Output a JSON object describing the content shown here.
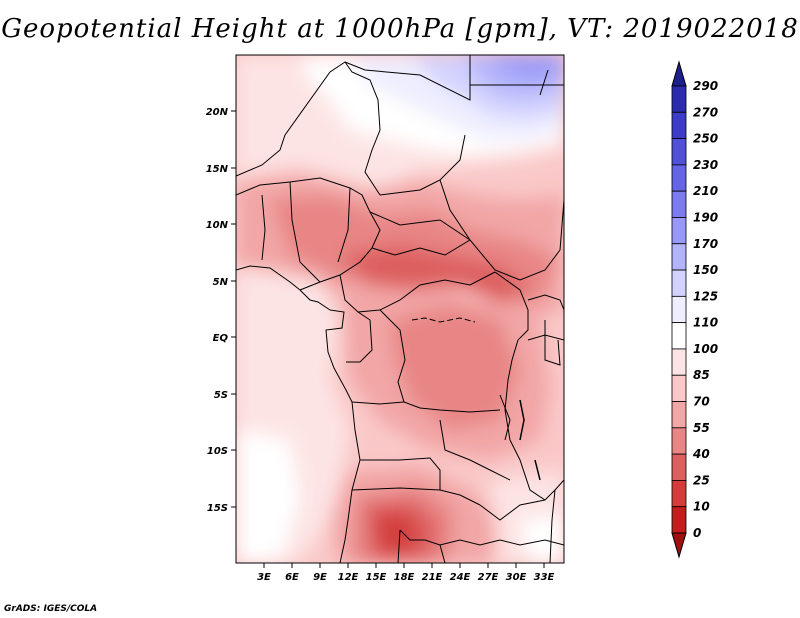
{
  "title": "Geopotential Height at 1000hPa [gpm], VT: 2019022018",
  "credit": "GrADS: IGES/COLA",
  "lat_labels": [
    "20N",
    "15N",
    "10N",
    "5N",
    "EQ",
    "5S",
    "10S",
    "15S"
  ],
  "lon_labels": [
    "3E",
    "6E",
    "9E",
    "12E",
    "15E",
    "18E",
    "21E",
    "24E",
    "27E",
    "30E",
    "33E"
  ],
  "colorbar": {
    "levels": [
      "290",
      "270",
      "250",
      "230",
      "210",
      "190",
      "170",
      "150",
      "125",
      "110",
      "100",
      "85",
      "70",
      "55",
      "40",
      "25",
      "10",
      "0"
    ],
    "colors": [
      "#1e1e8c",
      "#2b2bb0",
      "#3c3cc8",
      "#5050d8",
      "#6464e6",
      "#7c7cf0",
      "#9898f8",
      "#b4b4fc",
      "#d2d2fe",
      "#eeeeff",
      "#ffffff",
      "#fde4e4",
      "#fac8c8",
      "#f2a6a6",
      "#e88585",
      "#dd5f5f",
      "#d43c3c",
      "#c21e1e",
      "#a01010"
    ]
  }
}
